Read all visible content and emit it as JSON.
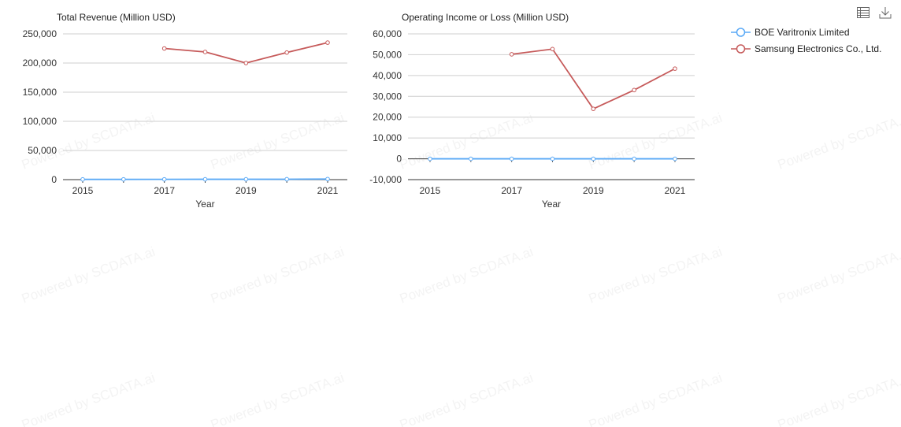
{
  "toolbar": {
    "icons": [
      "data-view-icon",
      "download-icon"
    ]
  },
  "watermark": "Powered by SCDATA.ai",
  "legend": [
    {
      "name": "BOE Varitronix Limited",
      "color": "#5aa9f6"
    },
    {
      "name": "Samsung Electronics Co., Ltd.",
      "color": "#c65a5a"
    }
  ],
  "chart_data": [
    {
      "type": "line",
      "title": "Total Revenue (Million USD)",
      "xlabel": "Year",
      "ylabel": "",
      "x": [
        2015,
        2016,
        2017,
        2018,
        2019,
        2020,
        2021
      ],
      "xticks": [
        "2015",
        "2017",
        "2019",
        "2021"
      ],
      "ylim": [
        0,
        250000
      ],
      "yticks": [
        "0",
        "50,000",
        "100,000",
        "150,000",
        "200,000",
        "250,000"
      ],
      "ytick_values": [
        0,
        50000,
        100000,
        150000,
        200000,
        250000
      ],
      "grid": true,
      "series": [
        {
          "name": "BOE Varitronix Limited",
          "color": "#5aa9f6",
          "values": [
            400,
            450,
            500,
            600,
            600,
            700,
            1000
          ]
        },
        {
          "name": "Samsung Electronics Co., Ltd.",
          "color": "#c65a5a",
          "values": [
            null,
            null,
            225000,
            219000,
            200000,
            218000,
            235000
          ]
        }
      ]
    },
    {
      "type": "line",
      "title": "Operating Income or Loss (Million USD)",
      "xlabel": "Year",
      "ylabel": "",
      "x": [
        2015,
        2016,
        2017,
        2018,
        2019,
        2020,
        2021
      ],
      "xticks": [
        "2015",
        "2017",
        "2019",
        "2021"
      ],
      "ylim": [
        -10000,
        60000
      ],
      "yticks": [
        "-10,000",
        "0",
        "10,000",
        "20,000",
        "30,000",
        "40,000",
        "50,000",
        "60,000"
      ],
      "ytick_values": [
        -10000,
        0,
        10000,
        20000,
        30000,
        40000,
        50000,
        60000
      ],
      "grid": true,
      "series": [
        {
          "name": "BOE Varitronix Limited",
          "color": "#5aa9f6",
          "values": [
            0,
            0,
            0,
            0,
            0,
            0,
            0
          ]
        },
        {
          "name": "Samsung Electronics Co., Ltd.",
          "color": "#c65a5a",
          "values": [
            null,
            null,
            50200,
            52700,
            24000,
            33000,
            43300
          ]
        }
      ]
    }
  ]
}
